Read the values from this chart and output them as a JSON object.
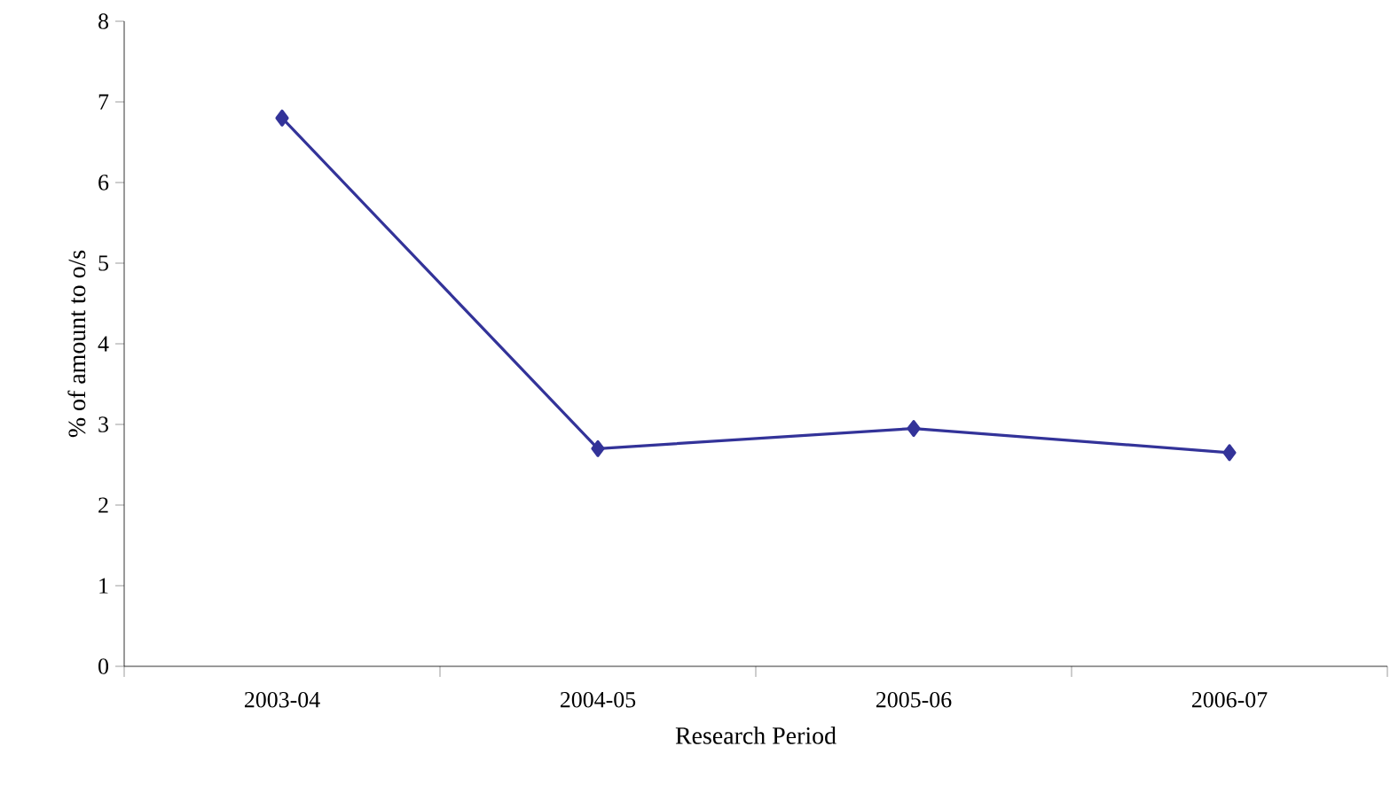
{
  "chart_data": {
    "type": "line",
    "xlabel": "Research Period",
    "ylabel": "% of amount to o/s",
    "categories": [
      "2003-04",
      "2004-05",
      "2005-06",
      "2006-07"
    ],
    "series": [
      {
        "color": "#333399",
        "values": [
          6.8,
          2.7,
          2.95,
          2.65
        ]
      }
    ],
    "marker": "diamond",
    "ylim": [
      0,
      8
    ],
    "yticks": [
      0,
      1,
      2,
      3,
      4,
      5,
      6,
      7,
      8
    ],
    "grid": false
  }
}
